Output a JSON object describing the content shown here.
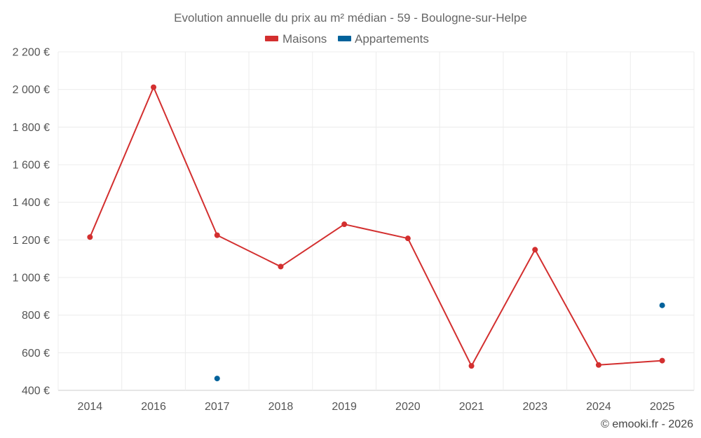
{
  "chart_data": {
    "type": "line",
    "title": "Evolution annuelle du prix au m² médian - 59 - Boulogne-sur-Helpe",
    "categories": [
      "2014",
      "2016",
      "2017",
      "2018",
      "2019",
      "2020",
      "2021",
      "2023",
      "2024",
      "2025"
    ],
    "series": [
      {
        "name": "Maisons",
        "color": "#d32f2f",
        "values": [
          1215,
          2012,
          1225,
          1058,
          1283,
          1208,
          530,
          1148,
          535,
          558
        ]
      },
      {
        "name": "Appartements",
        "color": "#01629b",
        "values": [
          null,
          null,
          463,
          null,
          null,
          null,
          null,
          null,
          null,
          852
        ]
      }
    ],
    "ylim": [
      400,
      2200
    ],
    "yticks": [
      400,
      600,
      800,
      1000,
      1200,
      1400,
      1600,
      1800,
      2000,
      2200
    ],
    "ytick_labels": [
      "400 €",
      "600 €",
      "800 €",
      "1 000 €",
      "1 200 €",
      "1 400 €",
      "1 600 €",
      "1 800 €",
      "2 000 €",
      "2 200 €"
    ],
    "xlabel": "",
    "ylabel": "",
    "grid": true,
    "legend_position": "top-center"
  },
  "credit": "© emooki.fr - 2026"
}
